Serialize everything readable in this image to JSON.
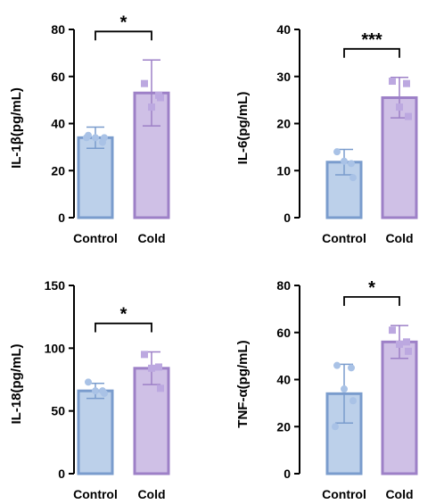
{
  "chart_data": [
    {
      "type": "bar",
      "ylabel": "IL-1β(pg/mL)",
      "categories": [
        "Control",
        "Cold"
      ],
      "values": [
        34,
        53
      ],
      "errors": [
        4.5,
        14
      ],
      "points": [
        [
          35,
          32,
          34,
          34,
          34
        ],
        [
          57,
          52,
          47,
          51
        ]
      ],
      "ylim": [
        0,
        80
      ],
      "yticks": [
        0,
        20,
        40,
        60,
        80
      ],
      "significance": "*",
      "colors": {
        "fill": [
          "#bcd0ea",
          "#cfc0e6"
        ],
        "stroke": [
          "#7a9ccd",
          "#9d80c7"
        ],
        "points": [
          "#a9c2e6",
          "#bca8e0"
        ]
      }
    },
    {
      "type": "bar",
      "ylabel": "IL-6(pg/mL)",
      "categories": [
        "Control",
        "Cold"
      ],
      "values": [
        11.8,
        25.5
      ],
      "errors": [
        2.7,
        4.3
      ],
      "points": [
        [
          14,
          11.5,
          12,
          8.5
        ],
        [
          29,
          28.5,
          23.5,
          21.5
        ]
      ],
      "ylim": [
        0,
        40
      ],
      "yticks": [
        0,
        10,
        20,
        30,
        40
      ],
      "significance": "***",
      "colors": {
        "fill": [
          "#bcd0ea",
          "#cfc0e6"
        ],
        "stroke": [
          "#7a9ccd",
          "#9d80c7"
        ],
        "points": [
          "#a9c2e6",
          "#bca8e0"
        ]
      }
    },
    {
      "type": "bar",
      "ylabel": "IL-18(pg/mL)",
      "categories": [
        "Control",
        "Cold"
      ],
      "values": [
        66,
        84
      ],
      "errors": [
        6,
        13
      ],
      "points": [
        [
          73,
          66,
          66,
          64
        ],
        [
          95,
          85,
          84,
          68
        ]
      ],
      "ylim": [
        0,
        150
      ],
      "yticks": [
        0,
        50,
        100,
        150
      ],
      "significance": "*",
      "colors": {
        "fill": [
          "#bcd0ea",
          "#cfc0e6"
        ],
        "stroke": [
          "#7a9ccd",
          "#9d80c7"
        ],
        "points": [
          "#a9c2e6",
          "#bca8e0"
        ]
      }
    },
    {
      "type": "bar",
      "ylabel": "TNF-α(pg/mL)",
      "categories": [
        "Control",
        "Cold"
      ],
      "values": [
        34,
        56
      ],
      "errors": [
        12.5,
        7
      ],
      "points": [
        [
          46,
          45,
          36,
          31,
          20
        ],
        [
          61,
          56,
          55,
          52
        ]
      ],
      "ylim": [
        0,
        80
      ],
      "yticks": [
        0,
        20,
        40,
        60,
        80
      ],
      "significance": "*",
      "colors": {
        "fill": [
          "#bcd0ea",
          "#cfc0e6"
        ],
        "stroke": [
          "#7a9ccd",
          "#9d80c7"
        ],
        "points": [
          "#a9c2e6",
          "#bca8e0"
        ]
      }
    }
  ]
}
